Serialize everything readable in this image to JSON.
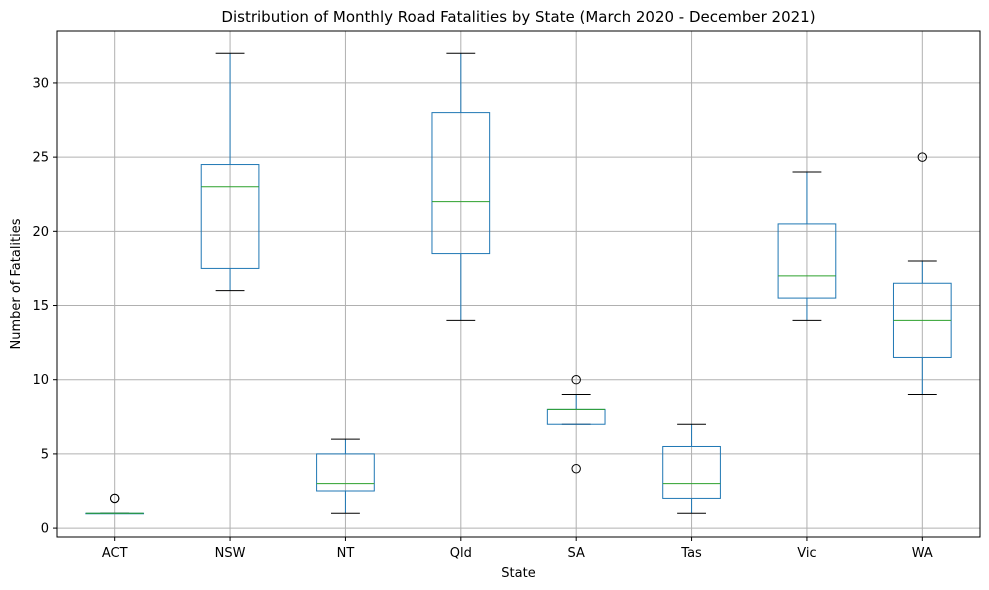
{
  "chart_data": {
    "type": "box",
    "title": "Distribution of Monthly Road Fatalities by State (March 2020 - December 2021)",
    "xlabel": "State",
    "ylabel": "Number of Fatalities",
    "ylim": [
      -0.6,
      33.5
    ],
    "yticks": [
      0,
      5,
      10,
      15,
      20,
      25,
      30
    ],
    "grid": true,
    "categories": [
      "ACT",
      "NSW",
      "NT",
      "Qld",
      "SA",
      "Tas",
      "Vic",
      "WA"
    ],
    "boxes": [
      {
        "category": "ACT",
        "whisker_low": 1,
        "q1": 1,
        "median": 1,
        "q3": 1,
        "whisker_high": 1,
        "outliers": [
          2,
          2
        ]
      },
      {
        "category": "NSW",
        "whisker_low": 16,
        "q1": 17.5,
        "median": 23,
        "q3": 24.5,
        "whisker_high": 32,
        "outliers": []
      },
      {
        "category": "NT",
        "whisker_low": 1,
        "q1": 2.5,
        "median": 3,
        "q3": 5,
        "whisker_high": 6,
        "outliers": []
      },
      {
        "category": "Qld",
        "whisker_low": 14,
        "q1": 18.5,
        "median": 22,
        "q3": 28,
        "whisker_high": 32,
        "outliers": []
      },
      {
        "category": "SA",
        "whisker_low": 7,
        "q1": 7,
        "median": 8,
        "q3": 8,
        "whisker_high": 9,
        "outliers": [
          10,
          4
        ]
      },
      {
        "category": "Tas",
        "whisker_low": 1,
        "q1": 2,
        "median": 3,
        "q3": 5.5,
        "whisker_high": 7,
        "outliers": []
      },
      {
        "category": "Vic",
        "whisker_low": 14,
        "q1": 15.5,
        "median": 17,
        "q3": 20.5,
        "whisker_high": 24,
        "outliers": []
      },
      {
        "category": "WA",
        "whisker_low": 9,
        "q1": 11.5,
        "median": 14,
        "q3": 16.5,
        "whisker_high": 18,
        "outliers": [
          25
        ]
      }
    ],
    "colors": {
      "box": "#1f77b4",
      "median": "#2ca02c",
      "whisker_cap": "#000000",
      "grid": "#b0b0b0",
      "axes": "#000000"
    }
  }
}
